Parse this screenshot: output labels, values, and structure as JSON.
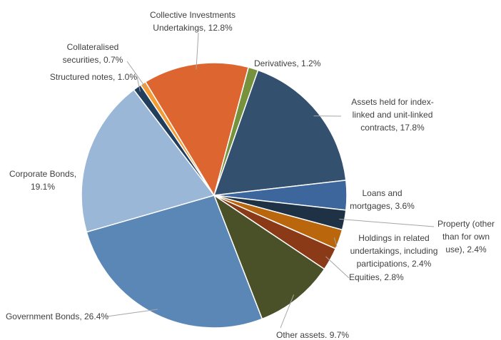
{
  "chart_data": {
    "type": "pie",
    "values": [
      1.2,
      17.8,
      3.6,
      2.4,
      2.4,
      2.8,
      9.7,
      26.4,
      19.1,
      1.0,
      0.7,
      12.8
    ],
    "value_labels": [
      "Derivatives, 1.2%",
      "Assets held for index-linked and unit-linked contracts, 17.8%",
      "Loans and mortgages, 3.6%",
      "Property (other than for own use), 2.4%",
      "Holdings in related undertakings, including participations, 2.4%",
      "Equities, 2.8%",
      "Other assets. 9.7%",
      "Government Bonds, 26.4%",
      "Corporate Bonds, 19.1%",
      "Structured notes, 1.0%",
      "Collateralised securities, 0.7%",
      "Collective Investments Undertakings, 12.8%"
    ],
    "colors": [
      "#77923c",
      "#33506e",
      "#3d679c",
      "#1f3245",
      "#b9660d",
      "#8b3a17",
      "#4a5027",
      "#5b87b6",
      "#9bb7d7",
      "#213e5c",
      "#f39c36",
      "#dd6530"
    ]
  }
}
